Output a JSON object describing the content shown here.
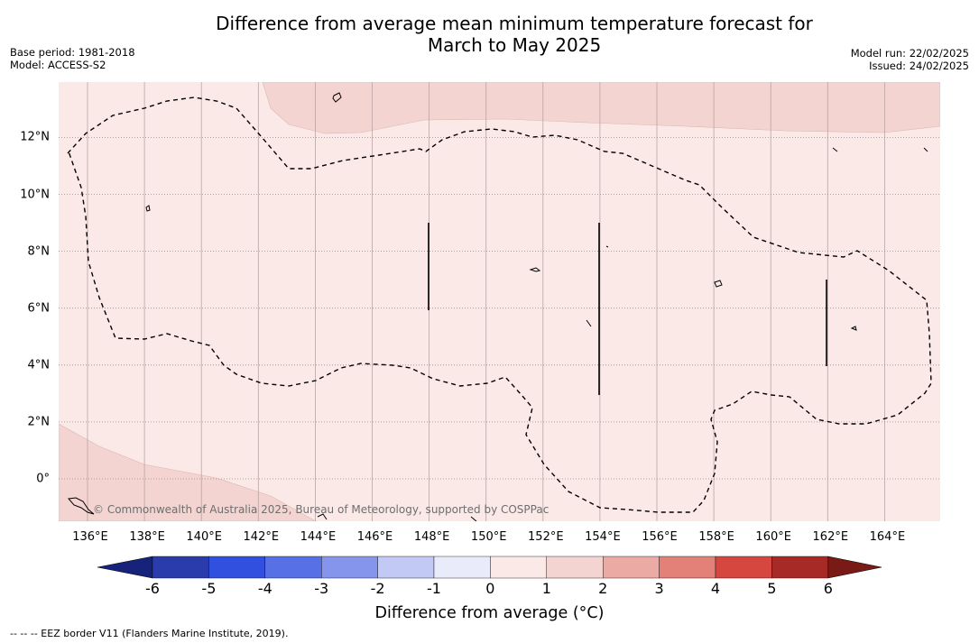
{
  "title_line1": "Difference from average mean minimum temperature forecast for",
  "title_line2": "March to May 2025",
  "base_period": "Base period: 1981-2018",
  "model": "Model: ACCESS-S2",
  "model_run": "Model run: 22/02/2025",
  "issued": "Issued: 24/02/2025",
  "x_ticks": [
    "136°E",
    "138°E",
    "140°E",
    "142°E",
    "144°E",
    "146°E",
    "148°E",
    "150°E",
    "152°E",
    "154°E",
    "156°E",
    "158°E",
    "160°E",
    "162°E",
    "164°E"
  ],
  "y_ticks": [
    "12°N",
    "10°N",
    "8°N",
    "6°N",
    "4°N",
    "2°N",
    "0°"
  ],
  "colorbar_ticks": [
    "-6",
    "-5",
    "-4",
    "-3",
    "-2",
    "-1",
    "0",
    "1",
    "2",
    "3",
    "4",
    "5",
    "6"
  ],
  "colorbar_label": "Difference from average (°C)",
  "footnote": "-- -- -- EEZ border V11 (Flanders Marine Institute, 2019).",
  "copyright": "© Commonwealth of Australia 2025, Bureau of Meteorology, supported by COSPPac",
  "map_fill_colors": {
    "0_to_1": "#fbe9e7",
    "1_to_2": "#f3d4d0"
  },
  "colorbar_colors": [
    "#17227a",
    "#2a3cab",
    "#3250e0",
    "#5870e6",
    "#8595ec",
    "#c2c9f4",
    "#e9ebfb",
    "#fbe9e7",
    "#f3d4d0",
    "#ebaaa3",
    "#e38179",
    "#d64740",
    "#a82a27",
    "#7a1a16"
  ]
}
